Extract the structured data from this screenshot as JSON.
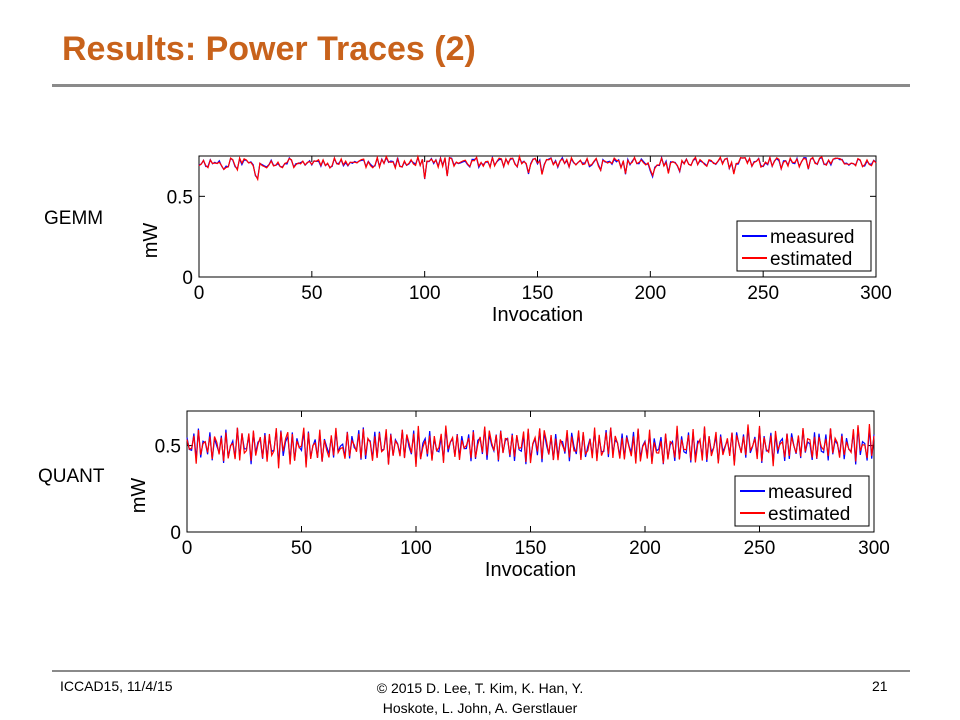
{
  "slide": {
    "title": "Results: Power Traces (2)",
    "footer": {
      "left": "ICCAD15,  11/4/15",
      "center_line1": "© 2015 D. Lee,  T. Kim,  K. Han,  Y.",
      "center_line2": "Hoskote,  L. John,  A. Gerstlauer",
      "page": "21"
    }
  },
  "chart_data": [
    {
      "type": "line",
      "row_label": "GEMM",
      "xlabel": "Invocation",
      "ylabel": "mW",
      "xlim": [
        0,
        300
      ],
      "ylim": [
        0,
        0.75
      ],
      "xticks": [
        0,
        50,
        100,
        150,
        200,
        250,
        300
      ],
      "yticks": [
        0,
        0.5
      ],
      "legend_position": "bottom-right",
      "grid": false,
      "trace": {
        "kind": "noisy",
        "mean": 0.71,
        "amplitude": 0.03,
        "seed": 11
      },
      "series": [
        {
          "name": "measured",
          "color": "#0000ff"
        },
        {
          "name": "estimated",
          "color": "#ff0000"
        }
      ]
    },
    {
      "type": "line",
      "row_label": "QUANT",
      "xlabel": "Invocation",
      "ylabel": "mW",
      "xlim": [
        0,
        300
      ],
      "ylim": [
        0,
        0.7
      ],
      "xticks": [
        0,
        50,
        100,
        150,
        200,
        250,
        300
      ],
      "yticks": [
        0,
        0.5
      ],
      "legend_position": "bottom-right",
      "grid": false,
      "trace": {
        "kind": "oscillating",
        "mean": 0.5,
        "amplitude": 0.09,
        "period": 2.4,
        "seed": 23
      },
      "series": [
        {
          "name": "measured",
          "color": "#0000ff"
        },
        {
          "name": "estimated",
          "color": "#ff0000"
        }
      ]
    }
  ]
}
